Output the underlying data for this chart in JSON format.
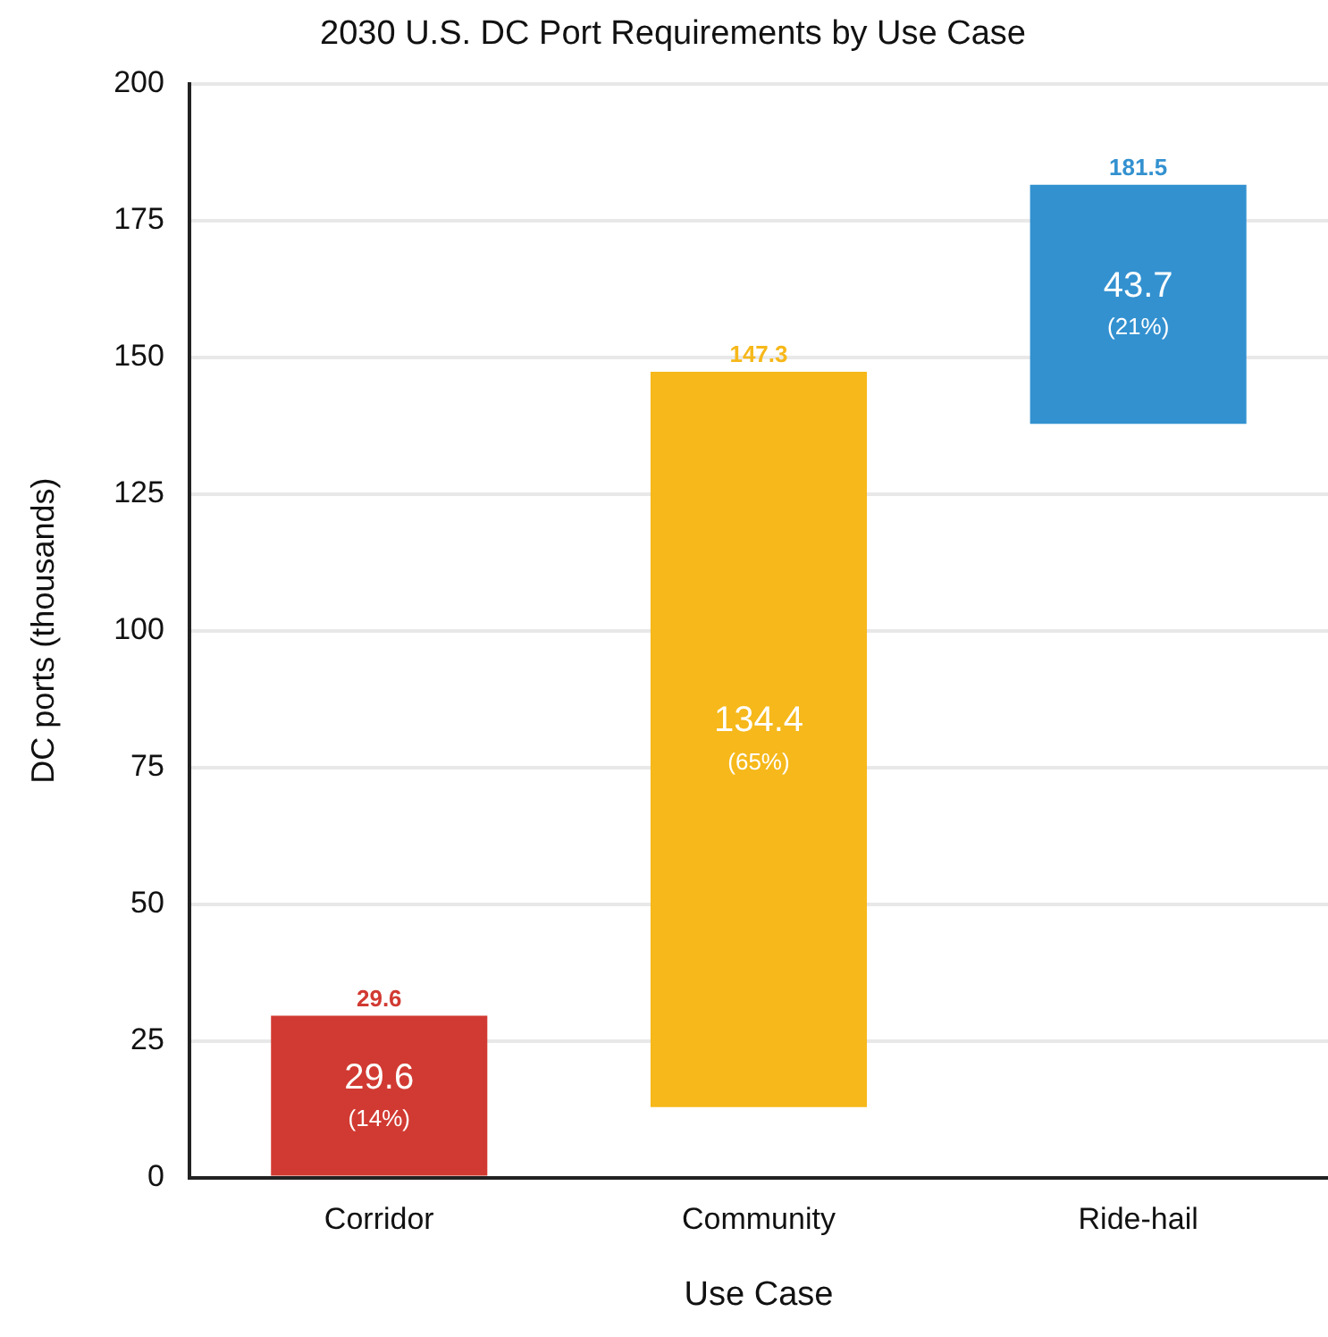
{
  "chart_data": {
    "type": "bar",
    "title": "2030 U.S. DC Port Requirements by Use Case",
    "xlabel": "Use Case",
    "ylabel": "DC ports (thousands)",
    "categories": [
      "Corridor",
      "Community",
      "Ride-hail"
    ],
    "values": [
      29.6,
      134.4,
      43.7
    ],
    "base": [
      0,
      12.9,
      137.8
    ],
    "colors": [
      "#d13a32",
      "#f6b81a",
      "#3391d0"
    ],
    "value_labels": [
      "29.6",
      "134.4",
      "43.7"
    ],
    "annotations": [
      {
        "text": "29.6",
        "x": "Corridor",
        "y": 29.6
      },
      {
        "text": "147.3",
        "x": "Community",
        "y": 147.3
      },
      {
        "text": "181.5",
        "x": "Ride-hail",
        "y": 181.5
      },
      "(14%)",
      "(65%)",
      "(21%)"
    ],
    "ylim": [
      0,
      200
    ],
    "yticks": [
      0,
      25,
      50,
      75,
      100,
      125,
      150,
      175,
      200
    ],
    "grid": "y",
    "legend": false
  }
}
